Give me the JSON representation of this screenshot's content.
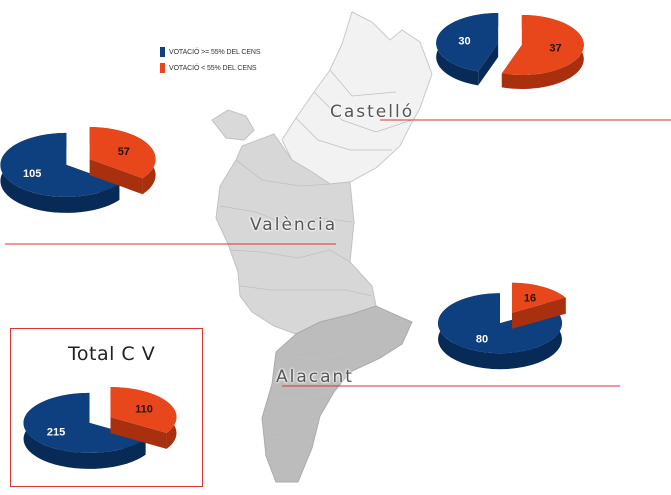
{
  "legend": {
    "items": [
      {
        "label": "VOTACIÓ >= 55% DEL CENS",
        "color": "#0e3f7e"
      },
      {
        "label": "VOTACIÓ < 55% DEL CENS",
        "color": "#e8471c"
      }
    ]
  },
  "regions": {
    "castello": "Castelló",
    "valencia": "València",
    "alacant": "Alacant"
  },
  "total": {
    "title": "Total C V"
  },
  "chart_data": [
    {
      "type": "pie",
      "region": "Castelló",
      "categories": [
        "VOTACIÓ >= 55% DEL CENS",
        "VOTACIÓ < 55% DEL CENS"
      ],
      "values": [
        30,
        37
      ],
      "labels": [
        "30",
        "37"
      ]
    },
    {
      "type": "pie",
      "region": "València",
      "categories": [
        "VOTACIÓ >= 55% DEL CENS",
        "VOTACIÓ < 55% DEL CENS"
      ],
      "values": [
        105,
        57
      ],
      "labels": [
        "105",
        "57"
      ]
    },
    {
      "type": "pie",
      "region": "Alacant",
      "categories": [
        "VOTACIÓ >= 55% DEL CENS",
        "VOTACIÓ < 55% DEL CENS"
      ],
      "values": [
        80,
        16
      ],
      "labels": [
        "80",
        "16"
      ]
    },
    {
      "type": "pie",
      "region": "Total C V",
      "categories": [
        "VOTACIÓ >= 55% DEL CENS",
        "VOTACIÓ < 55% DEL CENS"
      ],
      "values": [
        215,
        110
      ],
      "labels": [
        "215",
        "110"
      ]
    }
  ]
}
